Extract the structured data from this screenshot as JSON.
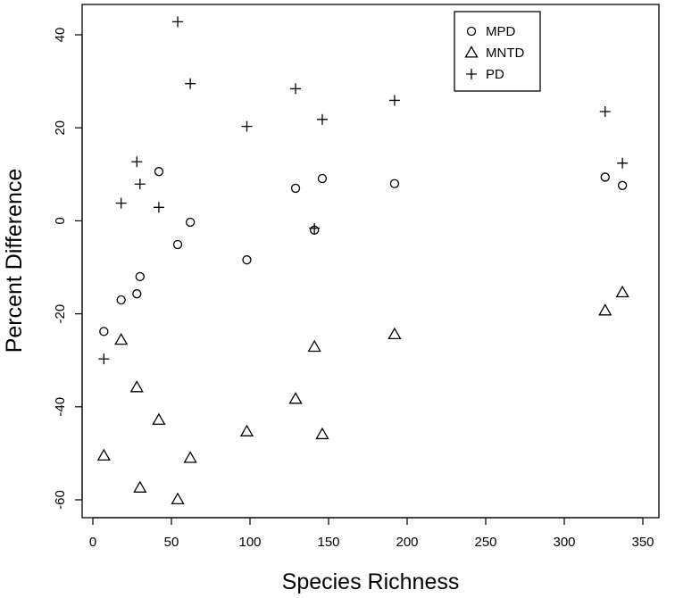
{
  "chart_data": {
    "type": "scatter",
    "title": "",
    "xlabel": "Species Richness",
    "ylabel": "Percent Difference",
    "xlim": [
      0,
      350
    ],
    "ylim": [
      -60,
      40
    ],
    "x_ticks": [
      0,
      50,
      100,
      150,
      200,
      250,
      300,
      350
    ],
    "y_ticks": [
      -60,
      -40,
      -20,
      0,
      20,
      40
    ],
    "grid": false,
    "legend_position": "top-right",
    "series": [
      {
        "name": "MPD",
        "marker": "circle",
        "points": [
          [
            7,
            -23.8
          ],
          [
            18,
            -17
          ],
          [
            28,
            -15.7
          ],
          [
            30,
            -12
          ],
          [
            42,
            10.6
          ],
          [
            54,
            -5.1
          ],
          [
            62,
            -0.3
          ],
          [
            98,
            -8.4
          ],
          [
            129,
            7
          ],
          [
            141,
            -2
          ],
          [
            146,
            9.1
          ],
          [
            192,
            8
          ],
          [
            326,
            9.4
          ],
          [
            337,
            7.6
          ]
        ]
      },
      {
        "name": "MNTD",
        "marker": "triangle",
        "points": [
          [
            7,
            -50.5
          ],
          [
            18,
            -25.6
          ],
          [
            28,
            -35.8
          ],
          [
            30,
            -57.4
          ],
          [
            42,
            -42.8
          ],
          [
            54,
            -59.9
          ],
          [
            62,
            -51
          ],
          [
            98,
            -45.3
          ],
          [
            129,
            -38.3
          ],
          [
            141,
            -27.1
          ],
          [
            146,
            -45.9
          ],
          [
            192,
            -24.4
          ],
          [
            326,
            -19.3
          ],
          [
            337,
            -15.4
          ]
        ]
      },
      {
        "name": "PD",
        "marker": "plus",
        "points": [
          [
            7,
            -29.7
          ],
          [
            18,
            3.8
          ],
          [
            28,
            12.7
          ],
          [
            30,
            7.9
          ],
          [
            42,
            2.9
          ],
          [
            54,
            42.8
          ],
          [
            62,
            29.5
          ],
          [
            98,
            20.3
          ],
          [
            129,
            28.4
          ],
          [
            141,
            -1.6
          ],
          [
            146,
            21.8
          ],
          [
            192,
            25.9
          ],
          [
            326,
            23.5
          ],
          [
            337,
            12.4
          ]
        ]
      }
    ]
  }
}
